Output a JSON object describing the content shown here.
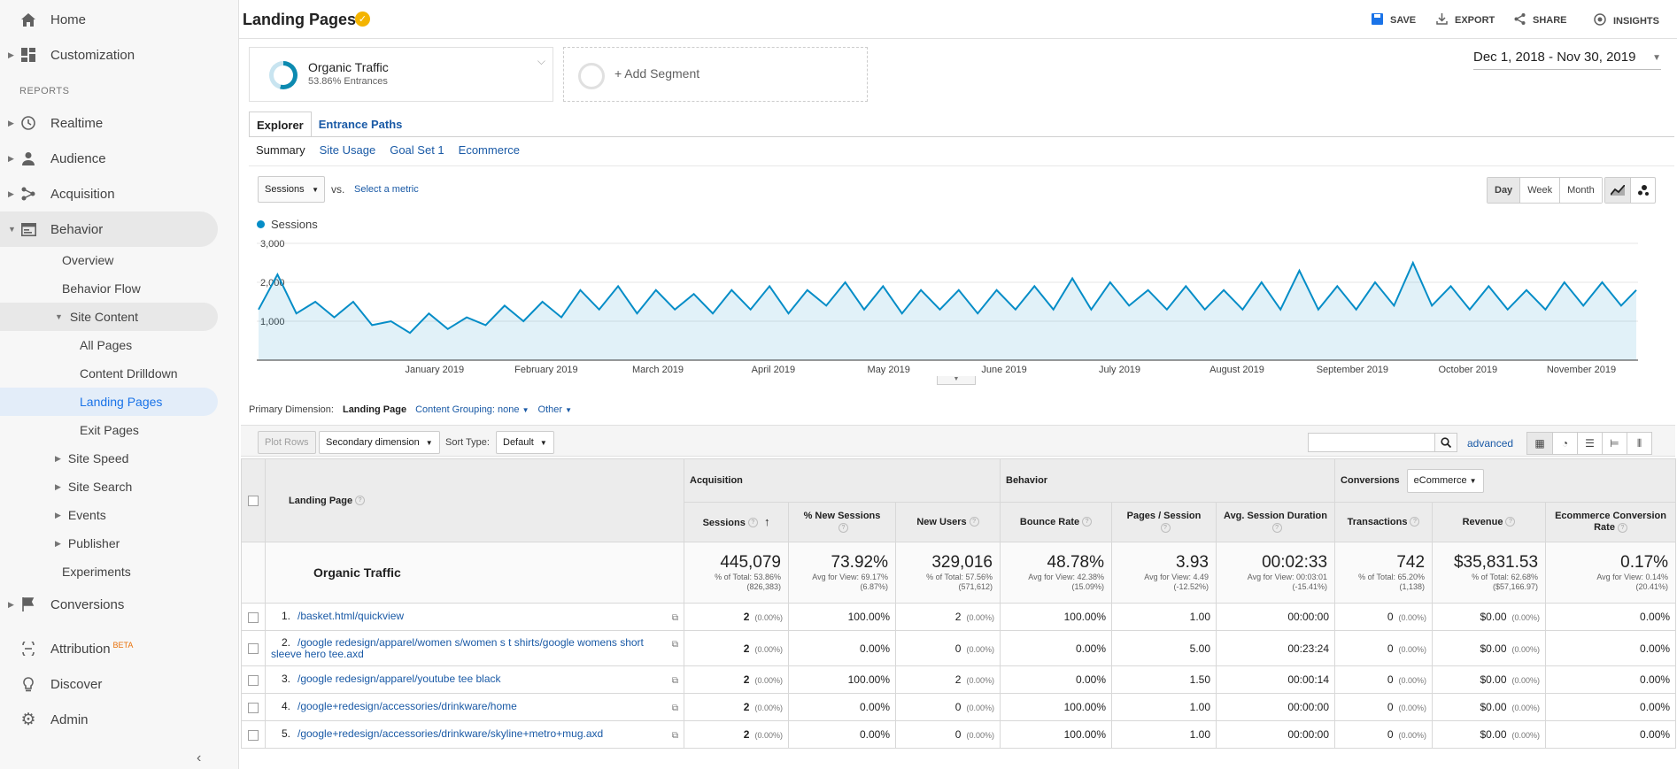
{
  "sidebar": {
    "home": "Home",
    "customization": "Customization",
    "reports_header": "REPORTS",
    "realtime": "Realtime",
    "audience": "Audience",
    "acquisition": "Acquisition",
    "behavior": "Behavior",
    "behavior_items": {
      "overview": "Overview",
      "behavior_flow": "Behavior Flow",
      "site_content": "Site Content",
      "all_pages": "All Pages",
      "content_drilldown": "Content Drilldown",
      "landing_pages": "Landing Pages",
      "exit_pages": "Exit Pages",
      "site_speed": "Site Speed",
      "site_search": "Site Search",
      "events": "Events",
      "publisher": "Publisher",
      "experiments": "Experiments"
    },
    "conversions": "Conversions",
    "attribution": "Attribution",
    "attribution_badge": "BETA",
    "discover": "Discover",
    "admin": "Admin"
  },
  "header": {
    "title": "Landing Pages",
    "save": "SAVE",
    "export": "EXPORT",
    "share": "SHARE",
    "insights": "INSIGHTS"
  },
  "segment": {
    "name": "Organic Traffic",
    "detail": "53.86% Entrances",
    "add": "+ Add Segment"
  },
  "date_range": "Dec 1, 2018 - Nov 30, 2019",
  "tabs": {
    "explorer": "Explorer",
    "entrance_paths": "Entrance Paths"
  },
  "subtabs": {
    "summary": "Summary",
    "site_usage": "Site Usage",
    "goal_set": "Goal Set 1",
    "ecommerce": "Ecommerce"
  },
  "chart_controls": {
    "metric": "Sessions",
    "vs": "vs.",
    "select_metric": "Select a metric",
    "day": "Day",
    "week": "Week",
    "month": "Month"
  },
  "chart_data": {
    "type": "line",
    "legend": "Sessions",
    "y_ticks": [
      "3,000",
      "2,000",
      "1,000"
    ],
    "ylim": [
      0,
      3000
    ],
    "x_labels": [
      "January 2019",
      "February 2019",
      "March 2019",
      "April 2019",
      "May 2019",
      "June 2019",
      "July 2019",
      "August 2019",
      "September 2019",
      "October 2019",
      "November 2019"
    ],
    "x_range": [
      "2018-12-01",
      "2019-11-30"
    ],
    "series": [
      {
        "name": "Sessions",
        "color": "#058dc7",
        "x": [
          "2018-12-01",
          "2018-12-06",
          "2018-12-11",
          "2018-12-16",
          "2018-12-21",
          "2018-12-26",
          "2018-12-31",
          "2019-01-05",
          "2019-01-10",
          "2019-01-15",
          "2019-01-20",
          "2019-01-25",
          "2019-01-30",
          "2019-02-04",
          "2019-02-09",
          "2019-02-14",
          "2019-02-19",
          "2019-02-24",
          "2019-03-01",
          "2019-03-06",
          "2019-03-11",
          "2019-03-16",
          "2019-03-21",
          "2019-03-26",
          "2019-03-31",
          "2019-04-05",
          "2019-04-10",
          "2019-04-15",
          "2019-04-20",
          "2019-04-25",
          "2019-04-30",
          "2019-05-05",
          "2019-05-10",
          "2019-05-15",
          "2019-05-20",
          "2019-05-25",
          "2019-05-30",
          "2019-06-04",
          "2019-06-09",
          "2019-06-14",
          "2019-06-19",
          "2019-06-24",
          "2019-06-29",
          "2019-07-04",
          "2019-07-09",
          "2019-07-14",
          "2019-07-19",
          "2019-07-24",
          "2019-07-29",
          "2019-08-03",
          "2019-08-08",
          "2019-08-13",
          "2019-08-18",
          "2019-08-23",
          "2019-08-28",
          "2019-09-02",
          "2019-09-07",
          "2019-09-12",
          "2019-09-17",
          "2019-09-22",
          "2019-09-27",
          "2019-10-02",
          "2019-10-07",
          "2019-10-12",
          "2019-10-17",
          "2019-10-22",
          "2019-10-27",
          "2019-11-01",
          "2019-11-06",
          "2019-11-11",
          "2019-11-16",
          "2019-11-21",
          "2019-11-26",
          "2019-11-30"
        ],
        "values": [
          1300,
          2200,
          1200,
          1500,
          1100,
          1500,
          900,
          1000,
          700,
          1200,
          800,
          1100,
          900,
          1400,
          1000,
          1500,
          1100,
          1800,
          1300,
          1900,
          1200,
          1800,
          1300,
          1700,
          1200,
          1800,
          1300,
          1900,
          1200,
          1800,
          1400,
          2000,
          1300,
          1900,
          1200,
          1800,
          1300,
          1800,
          1200,
          1800,
          1300,
          1900,
          1300,
          2100,
          1300,
          2000,
          1400,
          1800,
          1300,
          1900,
          1300,
          1800,
          1300,
          2000,
          1300,
          2300,
          1300,
          1900,
          1300,
          2000,
          1400,
          2500,
          1400,
          1900,
          1300,
          1900,
          1300,
          1800,
          1300,
          2000,
          1400,
          2000,
          1400,
          1800
        ]
      }
    ]
  },
  "primary_dimension": {
    "label": "Primary Dimension:",
    "value": "Landing Page",
    "content_grouping": "Content Grouping:",
    "content_grouping_value": "none",
    "other": "Other"
  },
  "toolbar": {
    "plot_rows": "Plot Rows",
    "secondary_dimension": "Secondary dimension",
    "sort_type_label": "Sort Type:",
    "sort_type": "Default",
    "search_value": "",
    "advanced": "advanced"
  },
  "table": {
    "groups": {
      "acquisition": "Acquisition",
      "behavior": "Behavior",
      "conversions": "Conversions",
      "conversions_select": "eCommerce"
    },
    "columns": {
      "landing_page": "Landing Page",
      "sessions": "Sessions",
      "new_sessions": "% New Sessions",
      "new_users": "New Users",
      "bounce_rate": "Bounce Rate",
      "pages_session": "Pages / Session",
      "avg_duration": "Avg. Session Duration",
      "transactions": "Transactions",
      "revenue": "Revenue",
      "ecr": "Ecommerce Conversion Rate"
    },
    "totals": {
      "label": "Organic Traffic",
      "sessions": [
        "445,079",
        "% of Total: 53.86%",
        "(826,383)"
      ],
      "new_sessions": [
        "73.92%",
        "Avg for View: 69.17%",
        "(6.87%)"
      ],
      "new_users": [
        "329,016",
        "% of Total: 57.56%",
        "(571,612)"
      ],
      "bounce_rate": [
        "48.78%",
        "Avg for View: 42.38%",
        "(15.09%)"
      ],
      "pages_session": [
        "3.93",
        "Avg for View: 4.49",
        "(-12.52%)"
      ],
      "avg_duration": [
        "00:02:33",
        "Avg for View: 00:03:01",
        "(-15.41%)"
      ],
      "transactions": [
        "742",
        "% of Total: 65.20%",
        "(1,138)"
      ],
      "revenue": [
        "$35,831.53",
        "% of Total: 62.68%",
        "($57,166.97)"
      ],
      "ecr": [
        "0.17%",
        "Avg for View: 0.14%",
        "(20.41%)"
      ]
    },
    "rows": [
      {
        "n": "1.",
        "page": "/basket.html/quickview",
        "sessions": "2",
        "sessions_pct": "(0.00%)",
        "new_sessions": "100.00%",
        "new_users": "2",
        "new_users_pct": "(0.00%)",
        "bounce": "100.00%",
        "pps": "1.00",
        "dur": "00:00:00",
        "tx": "0",
        "tx_pct": "(0.00%)",
        "rev": "$0.00",
        "rev_pct": "(0.00%)",
        "ecr": "0.00%"
      },
      {
        "n": "2.",
        "page": "/google redesign/apparel/women s/women s t shirts/google womens short sleeve hero tee.axd",
        "sessions": "2",
        "sessions_pct": "(0.00%)",
        "new_sessions": "0.00%",
        "new_users": "0",
        "new_users_pct": "(0.00%)",
        "bounce": "0.00%",
        "pps": "5.00",
        "dur": "00:23:24",
        "tx": "0",
        "tx_pct": "(0.00%)",
        "rev": "$0.00",
        "rev_pct": "(0.00%)",
        "ecr": "0.00%"
      },
      {
        "n": "3.",
        "page": "/google redesign/apparel/youtube tee black",
        "sessions": "2",
        "sessions_pct": "(0.00%)",
        "new_sessions": "100.00%",
        "new_users": "2",
        "new_users_pct": "(0.00%)",
        "bounce": "0.00%",
        "pps": "1.50",
        "dur": "00:00:14",
        "tx": "0",
        "tx_pct": "(0.00%)",
        "rev": "$0.00",
        "rev_pct": "(0.00%)",
        "ecr": "0.00%"
      },
      {
        "n": "4.",
        "page": "/google+redesign/accessories/drinkware/home",
        "sessions": "2",
        "sessions_pct": "(0.00%)",
        "new_sessions": "0.00%",
        "new_users": "0",
        "new_users_pct": "(0.00%)",
        "bounce": "100.00%",
        "pps": "1.00",
        "dur": "00:00:00",
        "tx": "0",
        "tx_pct": "(0.00%)",
        "rev": "$0.00",
        "rev_pct": "(0.00%)",
        "ecr": "0.00%"
      },
      {
        "n": "5.",
        "page": "/google+redesign/accessories/drinkware/skyline+metro+mug.axd",
        "sessions": "2",
        "sessions_pct": "(0.00%)",
        "new_sessions": "0.00%",
        "new_users": "0",
        "new_users_pct": "(0.00%)",
        "bounce": "100.00%",
        "pps": "1.00",
        "dur": "00:00:00",
        "tx": "0",
        "tx_pct": "(0.00%)",
        "rev": "$0.00",
        "rev_pct": "(0.00%)",
        "ecr": "0.00%"
      }
    ]
  }
}
